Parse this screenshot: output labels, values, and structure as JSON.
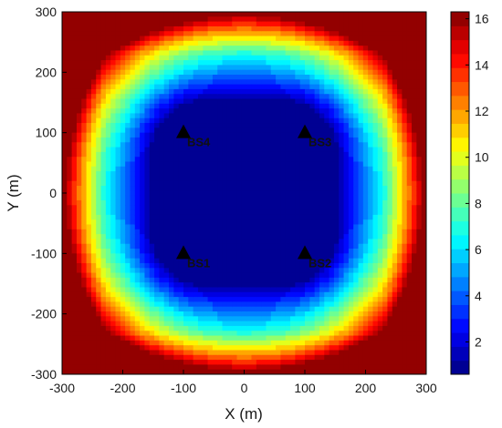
{
  "chart_data": {
    "type": "heatmap",
    "title": "",
    "xlabel": "X (m)",
    "ylabel": "Y (m)",
    "xlim": [
      -300,
      300
    ],
    "ylim": [
      -300,
      300
    ],
    "xticks": [
      -300,
      -200,
      -100,
      0,
      100,
      200,
      300
    ],
    "yticks": [
      -300,
      -200,
      -100,
      0,
      100,
      200,
      300
    ],
    "xtick_labels": [
      "-300",
      "-200",
      "-100",
      "0",
      "100",
      "200",
      "300"
    ],
    "ytick_labels": [
      "-300",
      "-200",
      "-100",
      "0",
      "100",
      "200",
      "300"
    ],
    "colorbar": {
      "range": [
        0.6,
        16.3
      ],
      "ticks": [
        2,
        4,
        6,
        8,
        10,
        12,
        14,
        16
      ],
      "tick_labels": [
        "2",
        "4",
        "6",
        "8",
        "10",
        "12",
        "14",
        "16"
      ],
      "colormap": "jet",
      "levels": 26
    },
    "field": {
      "description_of_values": "contour levels, low (dark blue) near the central disc, high (red) at corners and edges",
      "center_disc_radius": 140,
      "center_value": 1.0
    },
    "base_stations": [
      {
        "name": "BS1",
        "x": -100,
        "y": -100
      },
      {
        "name": "BS2",
        "x": 100,
        "y": -100
      },
      {
        "name": "BS3",
        "x": 100,
        "y": 100
      },
      {
        "name": "BS4",
        "x": -100,
        "y": 100
      }
    ],
    "grid": false,
    "legend": "colorbar right"
  },
  "colors": {
    "marker": "#000000",
    "frame": "#000000"
  }
}
